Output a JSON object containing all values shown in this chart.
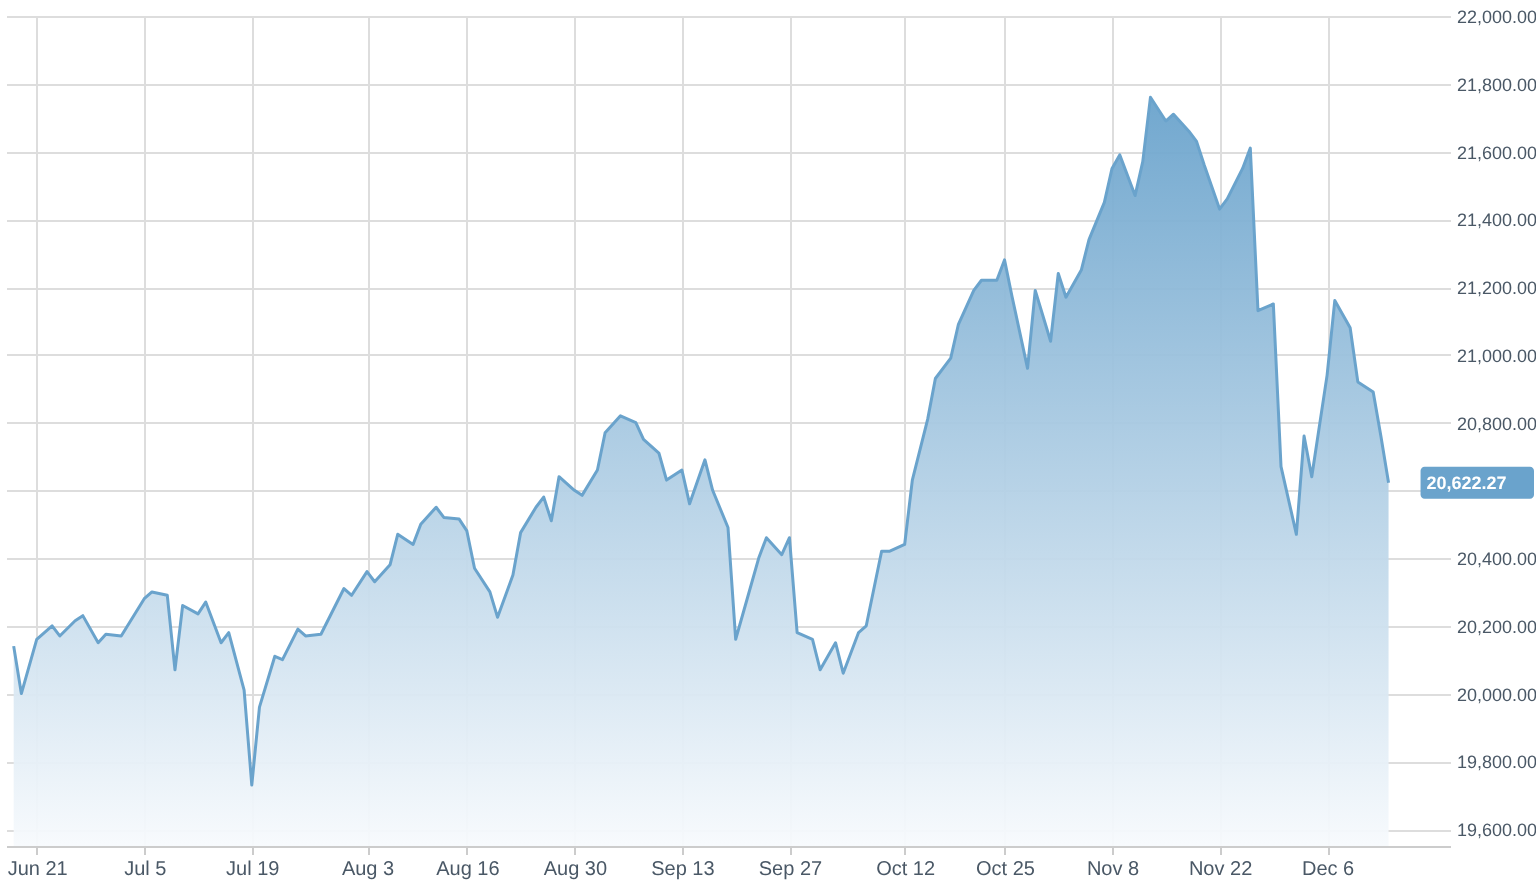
{
  "chart_data": {
    "type": "area",
    "color": "#6aa3cc",
    "x": [
      "--06-18",
      "--06-19",
      "--06-21",
      "--06-23",
      "--06-24",
      "--06-26",
      "--06-27",
      "--06-29",
      "--06-30",
      "--07-02",
      "--07-05",
      "--07-06",
      "--07-08",
      "--07-09",
      "--07-10",
      "--07-12",
      "--07-13",
      "--07-15",
      "--07-16",
      "--07-18",
      "--07-19",
      "--07-20",
      "--07-22",
      "--07-23",
      "--07-25",
      "--07-26",
      "--07-28",
      "--07-31",
      "--08-01",
      "--08-03",
      "--08-04",
      "--08-06",
      "--08-07",
      "--08-09",
      "--08-10",
      "--08-12",
      "--08-13",
      "--08-15",
      "--08-16",
      "--08-17",
      "--08-19",
      "--08-20",
      "--08-22",
      "--08-23",
      "--08-25",
      "--08-26",
      "--08-27",
      "--08-28",
      "--08-30",
      "--08-31",
      "--09-02",
      "--09-03",
      "--09-05",
      "--09-07",
      "--09-08",
      "--09-10",
      "--09-11",
      "--09-13",
      "--09-14",
      "--09-16",
      "--09-17",
      "--09-19",
      "--09-20",
      "--09-21",
      "--09-23",
      "--09-24",
      "--09-26",
      "--09-27",
      "--09-28",
      "--09-30",
      "--10-01",
      "--10-03",
      "--10-04",
      "--10-06",
      "--10-07",
      "--10-09",
      "--10-10",
      "--10-12",
      "--10-13",
      "--10-15",
      "--10-16",
      "--10-18",
      "--10-19",
      "--10-21",
      "--10-22",
      "--10-24",
      "--10-25",
      "--10-26",
      "--10-28",
      "--10-29",
      "--10-31",
      "--11-01",
      "--11-02",
      "--11-04",
      "--11-05",
      "--11-07",
      "--11-08",
      "--11-09",
      "--11-11",
      "--11-12",
      "--11-13",
      "--11-15",
      "--11-16",
      "--11-18",
      "--11-19",
      "--11-20",
      "--11-22",
      "--11-23",
      "--11-25",
      "--11-26",
      "--11-27",
      "--11-29",
      "--11-30",
      "--12-02",
      "--12-03",
      "--12-04",
      "--12-06",
      "--12-07",
      "--12-09",
      "--12-10",
      "--12-12",
      "--12-13",
      "--12-14"
    ],
    "values": [
      20140,
      20000,
      20160,
      20200,
      20170,
      20215,
      20230,
      20150,
      20175,
      20170,
      20280,
      20300,
      20290,
      20070,
      20260,
      20235,
      20270,
      20150,
      20180,
      20010,
      19730,
      19960,
      20110,
      20100,
      20190,
      20170,
      20175,
      20310,
      20290,
      20360,
      20330,
      20380,
      20470,
      20440,
      20500,
      20550,
      20520,
      20515,
      20480,
      20370,
      20300,
      20225,
      20350,
      20475,
      20550,
      20580,
      20510,
      20640,
      20600,
      20585,
      20660,
      20770,
      20820,
      20800,
      20750,
      20710,
      20630,
      20660,
      20560,
      20690,
      20600,
      20490,
      20160,
      20240,
      20400,
      20460,
      20410,
      20460,
      20180,
      20160,
      20070,
      20150,
      20060,
      20180,
      20200,
      20420,
      20420,
      20440,
      20630,
      20810,
      20930,
      20990,
      21090,
      21190,
      21220,
      21220,
      21280,
      21170,
      20960,
      21190,
      21040,
      21240,
      21170,
      21250,
      21340,
      21450,
      21550,
      21590,
      21470,
      21570,
      21760,
      21690,
      21710,
      21660,
      21630,
      21560,
      21430,
      21460,
      21550,
      21610,
      21130,
      21150,
      20670,
      20470,
      20760,
      20640,
      20940,
      21160,
      21080,
      20920,
      20890,
      20760,
      20622.27
    ],
    "xlim": [
      "--06-17",
      "--12-22"
    ],
    "ylim": [
      19550,
      22000
    ],
    "xticks": [
      {
        "value": "--06-21",
        "label": "Jun 21"
      },
      {
        "value": "--07-05",
        "label": "Jul 5"
      },
      {
        "value": "--07-19",
        "label": "Jul 19"
      },
      {
        "value": "--08-03",
        "label": "Aug 3"
      },
      {
        "value": "--08-16",
        "label": "Aug 16"
      },
      {
        "value": "--08-30",
        "label": "Aug 30"
      },
      {
        "value": "--09-13",
        "label": "Sep 13"
      },
      {
        "value": "--09-27",
        "label": "Sep 27"
      },
      {
        "value": "--10-12",
        "label": "Oct 12"
      },
      {
        "value": "--10-25",
        "label": "Oct 25"
      },
      {
        "value": "--11-08",
        "label": "Nov 8"
      },
      {
        "value": "--11-22",
        "label": "Nov 22"
      },
      {
        "value": "--12-06",
        "label": "Dec 6"
      }
    ],
    "yticks": [
      {
        "value": 19600,
        "label": "19,600.00"
      },
      {
        "value": 19800,
        "label": "19,800.00"
      },
      {
        "value": 20000,
        "label": "20,000.00"
      },
      {
        "value": 20200,
        "label": "20,200.00"
      },
      {
        "value": 20400,
        "label": "20,400.00"
      },
      {
        "value": 20600,
        "label": null
      },
      {
        "value": 20800,
        "label": "20,800.00"
      },
      {
        "value": 21000,
        "label": "21,000.00"
      },
      {
        "value": 21200,
        "label": "21,200.00"
      },
      {
        "value": 21400,
        "label": "21,400.00"
      },
      {
        "value": 21600,
        "label": "21,600.00"
      },
      {
        "value": 21800,
        "label": "21,800.00"
      },
      {
        "value": 22000,
        "label": "22,000.00"
      }
    ],
    "grid": true,
    "annotations": [
      {
        "text": "20,622.27",
        "x": "--12-14",
        "y": 20622.27
      }
    ]
  }
}
